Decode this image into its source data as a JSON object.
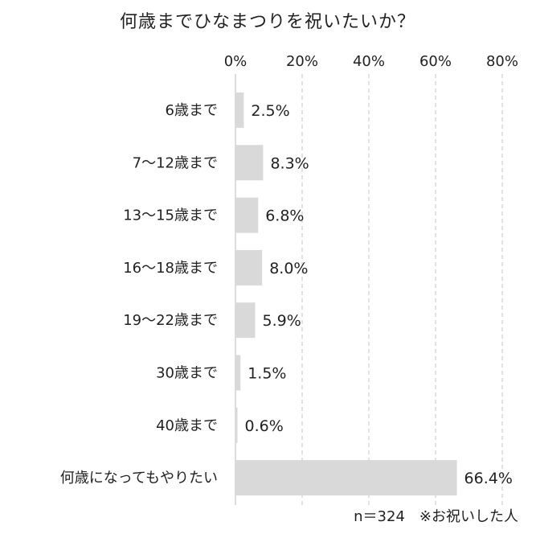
{
  "chart_data": {
    "type": "bar",
    "orientation": "horizontal",
    "title": "何歳までひなまつりを祝いたいか？",
    "categories": [
      "6歳まで",
      "7〜12歳まで",
      "13〜15歳まで",
      "16〜18歳まで",
      "19〜22歳まで",
      "30歳まで",
      "40歳まで",
      "何歳になってもやりたい"
    ],
    "values": [
      2.5,
      8.3,
      6.8,
      8.0,
      5.9,
      1.5,
      0.6,
      66.4
    ],
    "value_labels": [
      "2.5%",
      "8.3%",
      "6.8%",
      "8.0%",
      "5.9%",
      "1.5%",
      "0.6%",
      "66.4%"
    ],
    "xlim": [
      0,
      80
    ],
    "xticks": [
      0,
      20,
      40,
      60,
      80
    ],
    "xtick_labels": [
      "0%",
      "20%",
      "40%",
      "60%",
      "80%"
    ],
    "xaxis_position": "top",
    "grid": "vertical dashed",
    "bar_color": "#d9d9d9",
    "footnote": "n＝324　※お祝いした人"
  }
}
